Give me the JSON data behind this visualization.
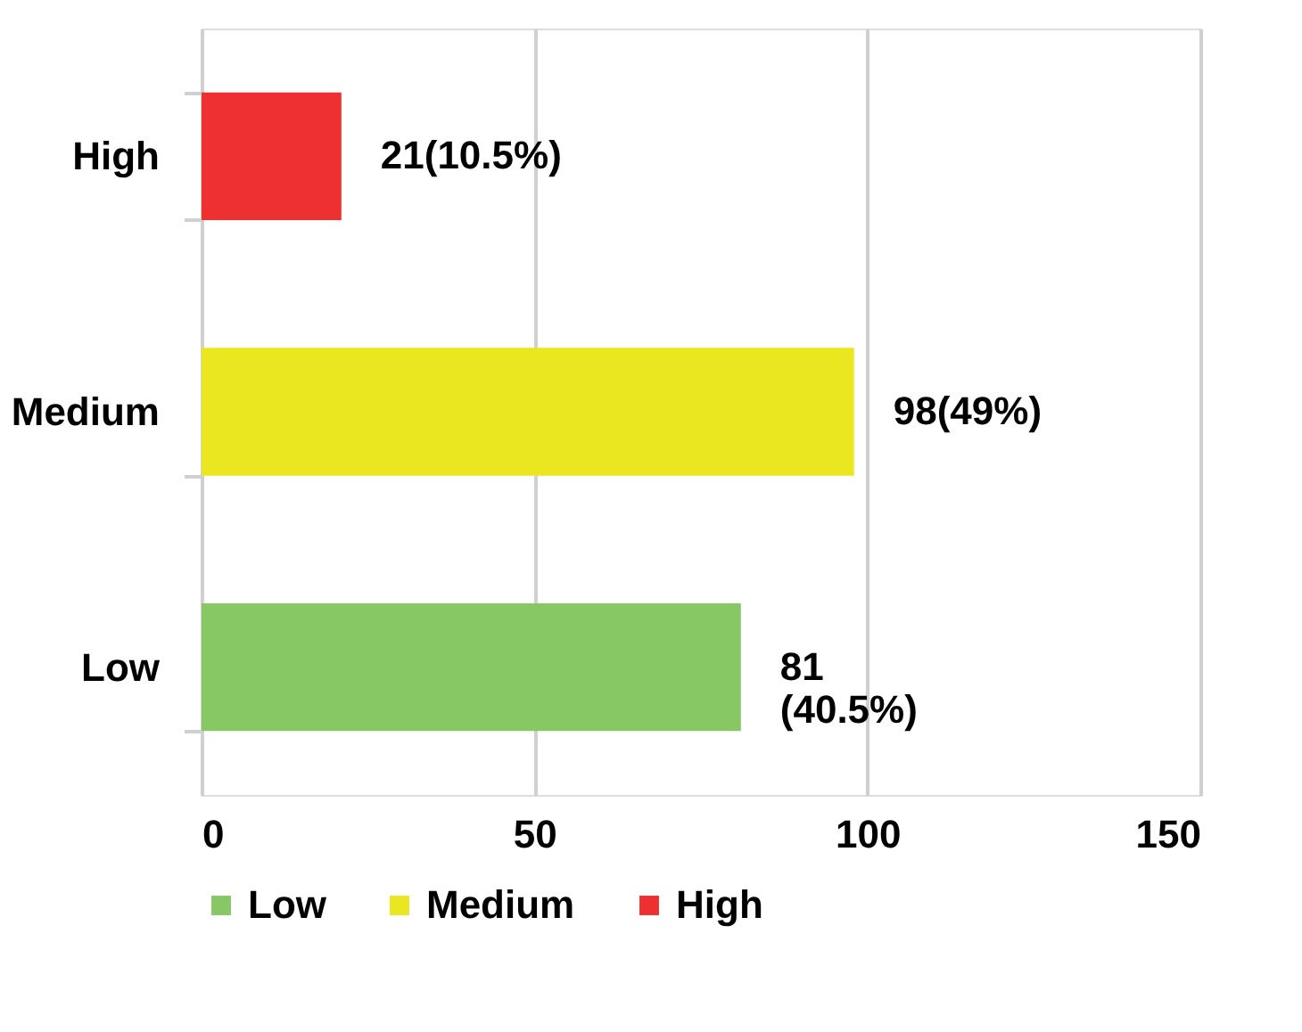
{
  "chart_data": {
    "type": "bar",
    "orientation": "horizontal",
    "stacked": true,
    "categories": [
      "High",
      "Medium",
      "Low"
    ],
    "series": [
      {
        "name": "Low",
        "color": "#88c864",
        "values": [
          null,
          null,
          81
        ],
        "value_labels": [
          null,
          null,
          "81\n(40.5%)"
        ]
      },
      {
        "name": "Medium",
        "color": "#eae620",
        "values": [
          null,
          98,
          null
        ],
        "value_labels": [
          null,
          "98(49%)",
          null
        ]
      },
      {
        "name": "High",
        "color": "#ee3030",
        "values": [
          21,
          null,
          null
        ],
        "value_labels": [
          "21(10.5%)",
          null,
          null
        ]
      }
    ],
    "xlim": [
      0,
      150
    ],
    "xticks": [
      0,
      50,
      100,
      150
    ],
    "grid": "x",
    "legend": "bottom"
  }
}
